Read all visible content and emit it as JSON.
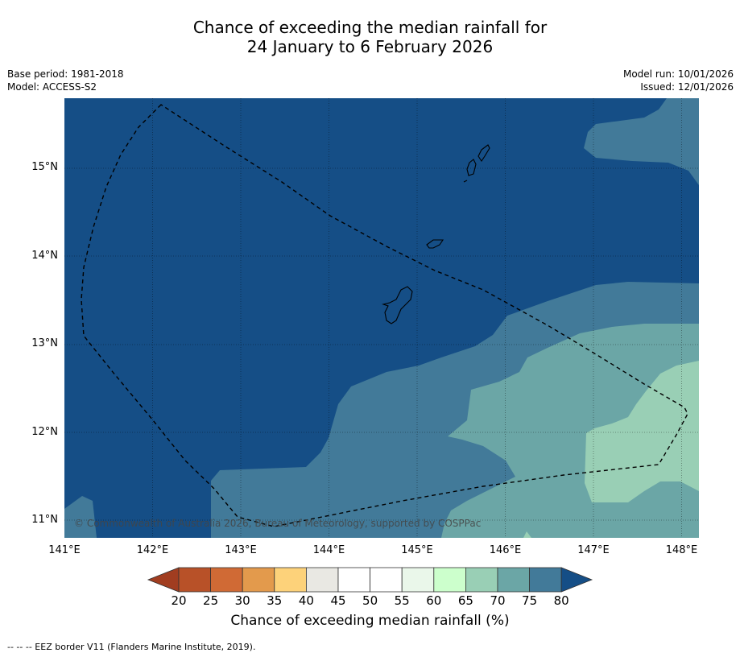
{
  "title": {
    "line1": "Chance of exceeding the median rainfall for",
    "line2": "24 January to 6 February 2026"
  },
  "meta": {
    "base_period": "Base period: 1981-2018",
    "model": "Model: ACCESS-S2",
    "model_run": "Model run: 10/01/2026",
    "issued": "Issued: 12/01/2026"
  },
  "map": {
    "copyright": "© Commonwealth of Australia 2026, Bureau of Meteorology, supported by COSPPac",
    "lon_range": [
      141,
      148.2
    ],
    "lat_range": [
      10.8,
      15.8
    ],
    "x_ticks": [
      "141°E",
      "142°E",
      "143°E",
      "144°E",
      "145°E",
      "146°E",
      "147°E",
      "148°E"
    ],
    "y_ticks": [
      "15°N",
      "14°N",
      "13°N",
      "12°N",
      "11°N"
    ]
  },
  "colorbar": {
    "labels": [
      "20",
      "25",
      "30",
      "35",
      "40",
      "45",
      "50",
      "55",
      "60",
      "65",
      "70",
      "75",
      "80"
    ],
    "colors": {
      "below20": "#a13d20",
      "c20_25": "#b85128",
      "c25_30": "#d06a35",
      "c30_35": "#e39a4c",
      "c35_40": "#fdd27a",
      "c40_45": "#e9e8e3",
      "c45_50": "#ffffff",
      "c50_55": "#ffffff",
      "c55_60": "#eaf7ea",
      "c60_65": "#ccffcc",
      "c65_70": "#99cfb5",
      "c70_75": "#6ba6a6",
      "c75_80": "#427a99",
      "above80": "#154e86"
    },
    "title": "Chance of exceeding median rainfall (%)"
  },
  "footer": "--  --  -- EEZ border V11 (Flanders Marine Institute, 2019)."
}
